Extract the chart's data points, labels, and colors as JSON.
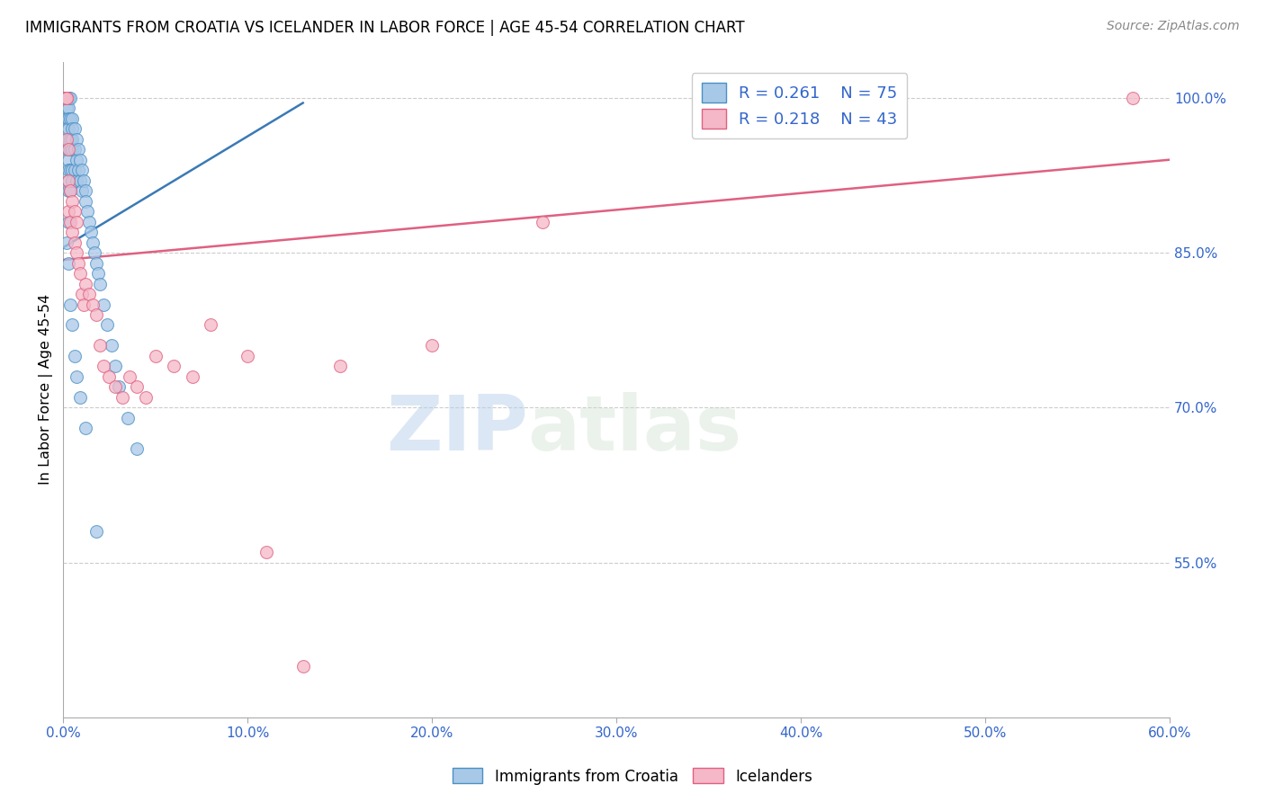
{
  "title": "IMMIGRANTS FROM CROATIA VS ICELANDER IN LABOR FORCE | AGE 45-54 CORRELATION CHART",
  "source": "Source: ZipAtlas.com",
  "ylabel": "In Labor Force | Age 45-54",
  "xlim": [
    0.0,
    0.6
  ],
  "ylim": [
    0.4,
    1.035
  ],
  "xticks": [
    0.0,
    0.1,
    0.2,
    0.3,
    0.4,
    0.5,
    0.6
  ],
  "xticklabels": [
    "0.0%",
    "10.0%",
    "20.0%",
    "30.0%",
    "40.0%",
    "50.0%",
    "60.0%"
  ],
  "yticks_right": [
    1.0,
    0.85,
    0.7,
    0.55
  ],
  "ytick_right_labels": [
    "100.0%",
    "85.0%",
    "70.0%",
    "55.0%"
  ],
  "blue_color": "#a8c8e8",
  "pink_color": "#f4b8c8",
  "blue_edge_color": "#4a90c4",
  "pink_edge_color": "#e06080",
  "blue_line_color": "#3a7ab5",
  "pink_line_color": "#e06080",
  "legend_blue_r": "R = 0.261",
  "legend_blue_n": "N = 75",
  "legend_pink_r": "R = 0.218",
  "legend_pink_n": "N = 43",
  "watermark_zip": "ZIP",
  "watermark_atlas": "atlas",
  "blue_scatter_x": [
    0.001,
    0.001,
    0.001,
    0.001,
    0.001,
    0.002,
    0.002,
    0.002,
    0.002,
    0.002,
    0.002,
    0.002,
    0.003,
    0.003,
    0.003,
    0.003,
    0.003,
    0.003,
    0.003,
    0.003,
    0.003,
    0.003,
    0.003,
    0.004,
    0.004,
    0.004,
    0.004,
    0.004,
    0.004,
    0.005,
    0.005,
    0.005,
    0.005,
    0.005,
    0.005,
    0.006,
    0.006,
    0.006,
    0.007,
    0.007,
    0.007,
    0.008,
    0.008,
    0.009,
    0.009,
    0.01,
    0.01,
    0.011,
    0.012,
    0.012,
    0.013,
    0.014,
    0.015,
    0.016,
    0.017,
    0.018,
    0.019,
    0.02,
    0.022,
    0.024,
    0.026,
    0.028,
    0.03,
    0.035,
    0.04,
    0.002,
    0.003,
    0.003,
    0.004,
    0.005,
    0.006,
    0.007,
    0.009,
    0.012,
    0.018
  ],
  "blue_scatter_y": [
    1.0,
    1.0,
    1.0,
    1.0,
    0.98,
    1.0,
    1.0,
    1.0,
    0.99,
    0.98,
    0.97,
    0.95,
    1.0,
    1.0,
    0.99,
    0.98,
    0.97,
    0.96,
    0.95,
    0.94,
    0.93,
    0.92,
    0.91,
    1.0,
    0.98,
    0.96,
    0.95,
    0.93,
    0.91,
    0.98,
    0.97,
    0.96,
    0.95,
    0.93,
    0.92,
    0.97,
    0.95,
    0.93,
    0.96,
    0.94,
    0.92,
    0.95,
    0.93,
    0.94,
    0.92,
    0.93,
    0.91,
    0.92,
    0.91,
    0.9,
    0.89,
    0.88,
    0.87,
    0.86,
    0.85,
    0.84,
    0.83,
    0.82,
    0.8,
    0.78,
    0.76,
    0.74,
    0.72,
    0.69,
    0.66,
    0.86,
    0.88,
    0.84,
    0.8,
    0.78,
    0.75,
    0.73,
    0.71,
    0.68,
    0.58
  ],
  "pink_scatter_x": [
    0.001,
    0.001,
    0.002,
    0.002,
    0.002,
    0.003,
    0.003,
    0.003,
    0.004,
    0.004,
    0.005,
    0.005,
    0.006,
    0.006,
    0.007,
    0.007,
    0.008,
    0.009,
    0.01,
    0.011,
    0.012,
    0.014,
    0.016,
    0.018,
    0.02,
    0.022,
    0.025,
    0.028,
    0.032,
    0.036,
    0.04,
    0.045,
    0.05,
    0.06,
    0.07,
    0.08,
    0.1,
    0.11,
    0.13,
    0.15,
    0.2,
    0.26,
    0.58
  ],
  "pink_scatter_y": [
    1.0,
    1.0,
    1.0,
    1.0,
    0.96,
    0.95,
    0.92,
    0.89,
    0.91,
    0.88,
    0.9,
    0.87,
    0.89,
    0.86,
    0.88,
    0.85,
    0.84,
    0.83,
    0.81,
    0.8,
    0.82,
    0.81,
    0.8,
    0.79,
    0.76,
    0.74,
    0.73,
    0.72,
    0.71,
    0.73,
    0.72,
    0.71,
    0.75,
    0.74,
    0.73,
    0.78,
    0.75,
    0.56,
    0.45,
    0.74,
    0.76,
    0.88,
    1.0
  ],
  "blue_trend_x": [
    0.0,
    0.13
  ],
  "blue_trend_y": [
    0.855,
    0.995
  ],
  "pink_trend_x": [
    0.0,
    0.6
  ],
  "pink_trend_y": [
    0.843,
    0.94
  ]
}
